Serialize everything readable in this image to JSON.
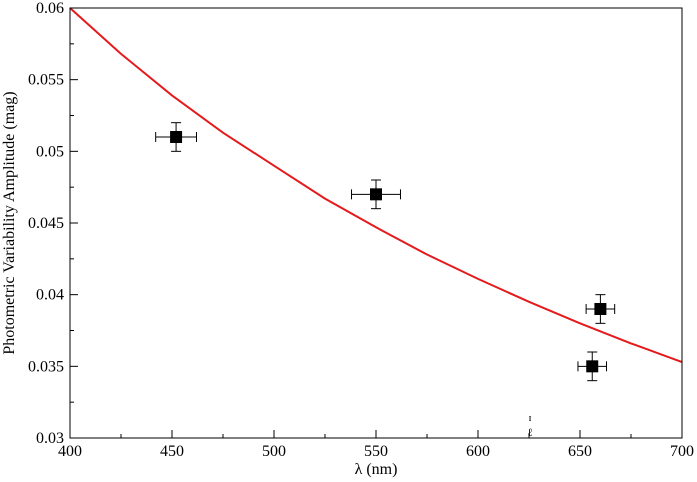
{
  "chart_data": {
    "type": "scatter",
    "title": "",
    "xlabel": "λ (nm)",
    "ylabel": "Photometric Variability Amplitude (mag)",
    "xlim": [
      400,
      700
    ],
    "ylim": [
      0.03,
      0.06
    ],
    "xticks": [
      400,
      450,
      500,
      550,
      600,
      650,
      700
    ],
    "yticks": [
      0.03,
      0.035,
      0.04,
      0.045,
      0.05,
      0.055,
      0.06
    ],
    "xtick_labels": [
      "400",
      "450",
      "500",
      "550",
      "600",
      "650",
      "700"
    ],
    "ytick_labels": [
      "0.03",
      "0.035",
      "0.04",
      "0.045",
      "0.05",
      "0.055",
      "0.06"
    ],
    "grid": false,
    "series": [
      {
        "type": "scatter",
        "marker": "square",
        "color": "#000000",
        "points": [
          {
            "x": 452,
            "y": 0.051,
            "xerr": 10,
            "yerr": 0.001
          },
          {
            "x": 550,
            "y": 0.047,
            "xerr": 12,
            "yerr": 0.001
          },
          {
            "x": 656,
            "y": 0.035,
            "xerr": 7,
            "yerr": 0.001
          },
          {
            "x": 660,
            "y": 0.039,
            "xerr": 7,
            "yerr": 0.001
          }
        ]
      },
      {
        "type": "line",
        "color": "#e41a1c",
        "x": [
          400,
          425,
          450,
          475,
          500,
          525,
          550,
          575,
          600,
          625,
          650,
          675,
          700
        ],
        "y": [
          0.06,
          0.0568,
          0.0539,
          0.0513,
          0.049,
          0.0467,
          0.0447,
          0.0428,
          0.0411,
          0.0395,
          0.038,
          0.0366,
          0.0353
        ]
      }
    ],
    "annotations": [
      "ɪ",
      "ℓ"
    ]
  }
}
